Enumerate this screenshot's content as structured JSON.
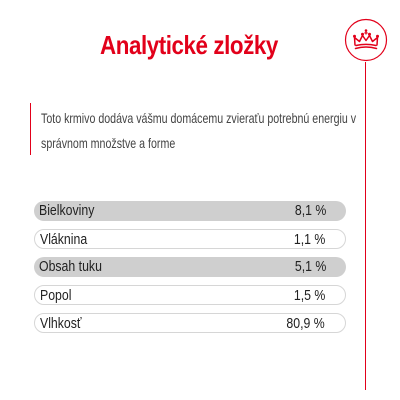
{
  "title": "Analytické zložky",
  "intro": "Toto krmivo dodáva vášmu domácemu zvieraťu potrebnú energiu v správnom množstve a forme",
  "logo": {
    "icon": "crown-icon"
  },
  "colors": {
    "accent": "#e2001a",
    "row_shade": "#cfcfcf"
  },
  "nutrients": [
    {
      "label": "Bielkoviny",
      "value": "8,1 %"
    },
    {
      "label": "Vláknina",
      "value": "1,1 %"
    },
    {
      "label": "Obsah tuku",
      "value": "5,1 %"
    },
    {
      "label": "Popol",
      "value": "1,5 %"
    },
    {
      "label": "Vlhkosť",
      "value": "80,9 %"
    }
  ]
}
